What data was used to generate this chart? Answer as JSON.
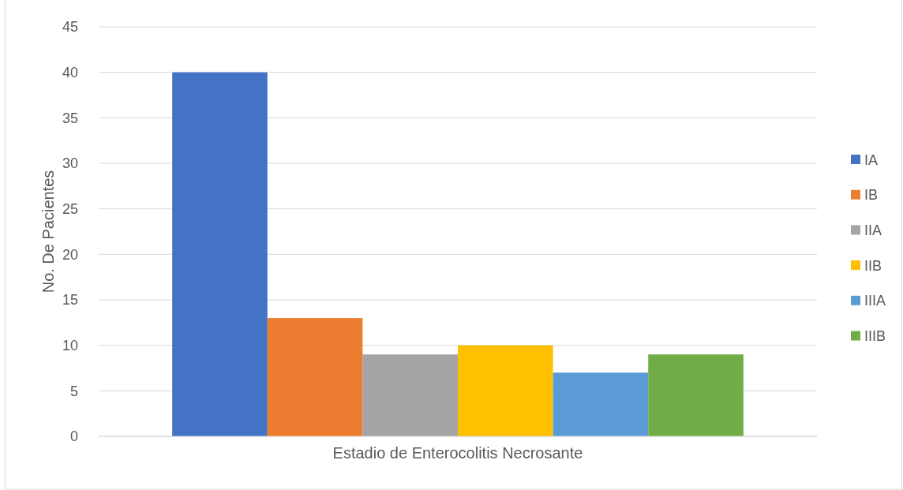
{
  "chart_data": {
    "type": "bar",
    "ylabel": "No. De Pacientes",
    "categories": [
      "Estadio de Enterocolitis Necrosante"
    ],
    "series": [
      {
        "name": "IA",
        "color": "#4472c4",
        "values": [
          40
        ]
      },
      {
        "name": "IB",
        "color": "#ed7d31",
        "values": [
          13
        ]
      },
      {
        "name": "IIA",
        "color": "#a5a5a5",
        "values": [
          9
        ]
      },
      {
        "name": "IIB",
        "color": "#ffc000",
        "values": [
          10
        ]
      },
      {
        "name": "IIIA",
        "color": "#5b9bd5",
        "values": [
          7
        ]
      },
      {
        "name": "IIIB",
        "color": "#70ad47",
        "values": [
          9
        ]
      }
    ],
    "ylim": [
      0,
      45
    ],
    "yticks": [
      0,
      5,
      10,
      15,
      20,
      25,
      30,
      35,
      40,
      45
    ],
    "grid": "y",
    "legend": "right"
  }
}
